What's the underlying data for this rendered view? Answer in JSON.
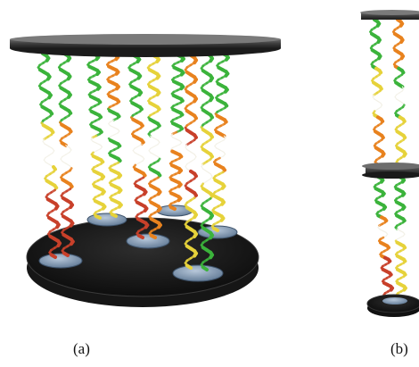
{
  "panels": [
    {
      "id": "a",
      "label": "(a)"
    },
    {
      "id": "b",
      "label": "(b)"
    }
  ],
  "colors": {
    "plate_dark": "#2a2a2a",
    "plate_rim": "#4a4a4a",
    "pad_blue": "#7f97b3",
    "helix_green": "#3bb33b",
    "helix_orange": "#e8821e",
    "helix_yellow": "#e6d23a",
    "helix_red": "#c8402a",
    "loop_white": "#f2f0e6"
  }
}
